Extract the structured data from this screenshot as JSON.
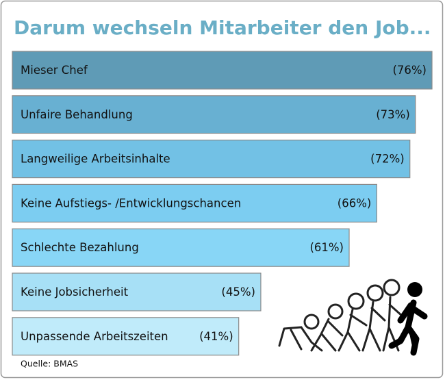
{
  "chart_data": {
    "type": "bar",
    "orientation": "horizontal",
    "title": "Darum wechseln Mitarbeiter den Job...",
    "categories": [
      "Mieser Chef",
      "Unfaire Behandlung",
      "Langweilige Arbeitsinhalte",
      "Keine Aufstiegs- /Entwicklungschancen",
      "Schlechte Bezahlung",
      "Keine Jobsicherheit",
      "Unpassende Arbeitszeiten"
    ],
    "values": [
      76,
      73,
      72,
      66,
      61,
      45,
      41
    ],
    "value_labels": [
      "(76%)",
      "(73%)",
      "(72%)",
      "(66%)",
      "(61%)",
      "(45%)",
      "(41%)"
    ],
    "colors": [
      "#5f9bb6",
      "#68b0d2",
      "#72c1e5",
      "#7ccdf1",
      "#88d6f6",
      "#a7e0f6",
      "#c0ebfa"
    ],
    "source": "Quelle: BMAS"
  }
}
